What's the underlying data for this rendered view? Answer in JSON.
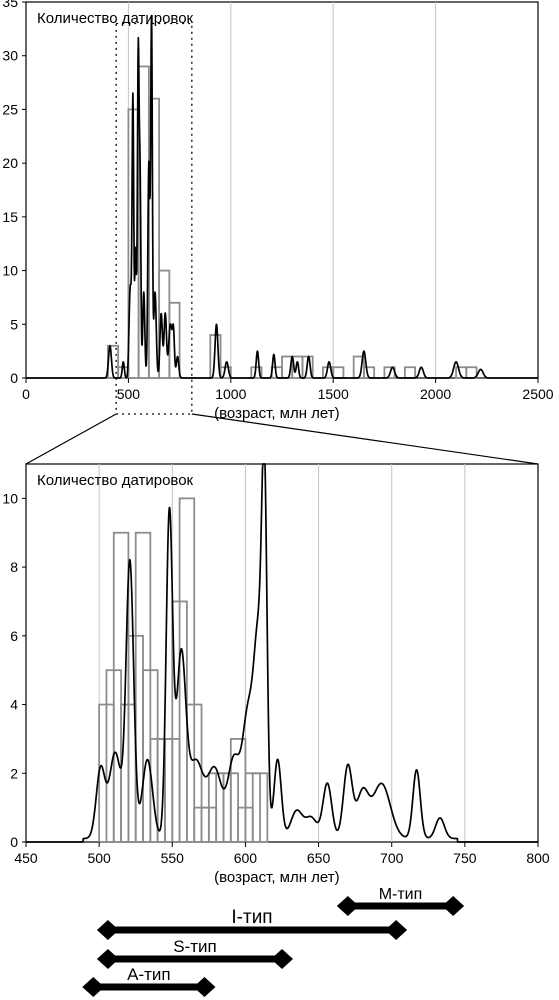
{
  "chart_data": [
    {
      "type": "bar",
      "title": "Количество датировок",
      "xlabel": "(возраст, млн лет)",
      "xlim": [
        0,
        2500
      ],
      "ylim": [
        0,
        35
      ],
      "xticks": [
        "0",
        "500",
        "1000",
        "1500",
        "2000",
        "2500"
      ],
      "yticks": [
        "0",
        "5",
        "10",
        "15",
        "20",
        "25",
        "30",
        "35"
      ],
      "grid": true,
      "histogram": {
        "bin_width": 50,
        "bins": [
          {
            "x0": 400,
            "count": 3
          },
          {
            "x0": 450,
            "count": 1
          },
          {
            "x0": 500,
            "count": 25
          },
          {
            "x0": 550,
            "count": 29
          },
          {
            "x0": 600,
            "count": 26
          },
          {
            "x0": 650,
            "count": 10
          },
          {
            "x0": 700,
            "count": 7
          },
          {
            "x0": 900,
            "count": 4
          },
          {
            "x0": 950,
            "count": 1
          },
          {
            "x0": 1100,
            "count": 1
          },
          {
            "x0": 1200,
            "count": 1
          },
          {
            "x0": 1250,
            "count": 2
          },
          {
            "x0": 1300,
            "count": 2
          },
          {
            "x0": 1350,
            "count": 2
          },
          {
            "x0": 1450,
            "count": 1
          },
          {
            "x0": 1500,
            "count": 1
          },
          {
            "x0": 1600,
            "count": 2
          },
          {
            "x0": 1650,
            "count": 1
          },
          {
            "x0": 1750,
            "count": 1
          },
          {
            "x0": 1850,
            "count": 1
          },
          {
            "x0": 2100,
            "count": 1
          },
          {
            "x0": 2150,
            "count": 1
          }
        ]
      },
      "density_curve": {
        "baseline": 0,
        "peaks": [
          {
            "x": 410,
            "h": 3,
            "w": 7
          },
          {
            "x": 475,
            "h": 1.5,
            "w": 5
          },
          {
            "x": 503,
            "h": 2,
            "w": 4
          },
          {
            "x": 510,
            "h": 8,
            "w": 5
          },
          {
            "x": 522,
            "h": 26,
            "w": 4
          },
          {
            "x": 535,
            "h": 12,
            "w": 4
          },
          {
            "x": 548,
            "h": 30,
            "w": 4
          },
          {
            "x": 557,
            "h": 18,
            "w": 4
          },
          {
            "x": 575,
            "h": 8,
            "w": 5
          },
          {
            "x": 600,
            "h": 20,
            "w": 5
          },
          {
            "x": 613,
            "h": 33,
            "w": 4
          },
          {
            "x": 630,
            "h": 8,
            "w": 6
          },
          {
            "x": 660,
            "h": 6,
            "w": 6
          },
          {
            "x": 680,
            "h": 6,
            "w": 6
          },
          {
            "x": 705,
            "h": 5,
            "w": 8
          },
          {
            "x": 720,
            "h": 4,
            "w": 5
          },
          {
            "x": 740,
            "h": 2,
            "w": 6
          },
          {
            "x": 930,
            "h": 5,
            "w": 7
          },
          {
            "x": 980,
            "h": 1.5,
            "w": 8
          },
          {
            "x": 1130,
            "h": 2.5,
            "w": 6
          },
          {
            "x": 1210,
            "h": 2.2,
            "w": 6
          },
          {
            "x": 1300,
            "h": 2,
            "w": 7
          },
          {
            "x": 1325,
            "h": 1.5,
            "w": 6
          },
          {
            "x": 1380,
            "h": 2,
            "w": 7
          },
          {
            "x": 1480,
            "h": 1.5,
            "w": 8
          },
          {
            "x": 1650,
            "h": 2.5,
            "w": 9
          },
          {
            "x": 1790,
            "h": 1,
            "w": 10
          },
          {
            "x": 1930,
            "h": 1,
            "w": 10
          },
          {
            "x": 2100,
            "h": 1.5,
            "w": 12
          },
          {
            "x": 2220,
            "h": 0.8,
            "w": 12
          }
        ]
      },
      "zoom_box": {
        "x_range": [
          450,
          800
        ],
        "y_top": 33
      }
    },
    {
      "type": "bar",
      "title": "Количество датировок",
      "xlabel": "(возраст, млн лет)",
      "xlim": [
        450,
        800
      ],
      "ylim": [
        0,
        11
      ],
      "xticks": [
        "450",
        "500",
        "550",
        "600",
        "650",
        "700",
        "750",
        "800"
      ],
      "yticks": [
        "0",
        "2",
        "4",
        "6",
        "8",
        "10"
      ],
      "grid": true,
      "histogram": {
        "bin_width": 10,
        "bins": [
          {
            "x0": 500,
            "count": 4
          },
          {
            "x0": 505,
            "count": 5
          },
          {
            "x0": 510,
            "count": 9
          },
          {
            "x0": 515,
            "count": 4
          },
          {
            "x0": 520,
            "count": 6
          },
          {
            "x0": 525,
            "count": 9
          },
          {
            "x0": 530,
            "count": 5
          },
          {
            "x0": 535,
            "count": 3
          },
          {
            "x0": 540,
            "count": 3
          },
          {
            "x0": 545,
            "count": 3
          },
          {
            "x0": 550,
            "count": 7
          },
          {
            "x0": 555,
            "count": 10
          },
          {
            "x0": 560,
            "count": 4
          },
          {
            "x0": 565,
            "count": 1
          },
          {
            "x0": 570,
            "count": 1
          },
          {
            "x0": 575,
            "count": 2
          },
          {
            "x0": 580,
            "count": 2
          },
          {
            "x0": 585,
            "count": 2
          },
          {
            "x0": 590,
            "count": 3
          },
          {
            "x0": 595,
            "count": 1
          },
          {
            "x0": 600,
            "count": 2
          },
          {
            "x0": 605,
            "count": 2
          }
        ]
      },
      "density_curve": {
        "baseline": 0.1,
        "peaks": [
          {
            "x": 501,
            "h": 2.0,
            "w": 3
          },
          {
            "x": 511,
            "h": 2.5,
            "w": 4
          },
          {
            "x": 521,
            "h": 8.0,
            "w": 2.6
          },
          {
            "x": 533,
            "h": 2.3,
            "w": 3.5
          },
          {
            "x": 548,
            "h": 9.4,
            "w": 2.2
          },
          {
            "x": 556,
            "h": 5.2,
            "w": 3.2
          },
          {
            "x": 566,
            "h": 2.2,
            "w": 5
          },
          {
            "x": 579,
            "h": 2.0,
            "w": 5
          },
          {
            "x": 592,
            "h": 2.2,
            "w": 4
          },
          {
            "x": 602,
            "h": 3.6,
            "w": 4
          },
          {
            "x": 609,
            "h": 5.2,
            "w": 3
          },
          {
            "x": 613,
            "h": 9.3,
            "w": 1.8
          },
          {
            "x": 622,
            "h": 2.3,
            "w": 2.5
          },
          {
            "x": 635,
            "h": 0.8,
            "w": 4
          },
          {
            "x": 645,
            "h": 0.6,
            "w": 4
          },
          {
            "x": 656,
            "h": 1.6,
            "w": 3
          },
          {
            "x": 670,
            "h": 2.1,
            "w": 3
          },
          {
            "x": 680,
            "h": 1.3,
            "w": 4
          },
          {
            "x": 693,
            "h": 1.6,
            "w": 6
          },
          {
            "x": 717,
            "h": 2.0,
            "w": 2.5
          },
          {
            "x": 733,
            "h": 0.6,
            "w": 3
          }
        ]
      },
      "ranges": [
        {
          "label": "M-тип",
          "from": 670,
          "to": 742
        },
        {
          "label": "I-тип",
          "from": 506,
          "to": 703
        },
        {
          "label": "S-тип",
          "from": 506,
          "to": 625
        },
        {
          "label": "A-тип",
          "from": 496,
          "to": 572
        }
      ]
    }
  ]
}
